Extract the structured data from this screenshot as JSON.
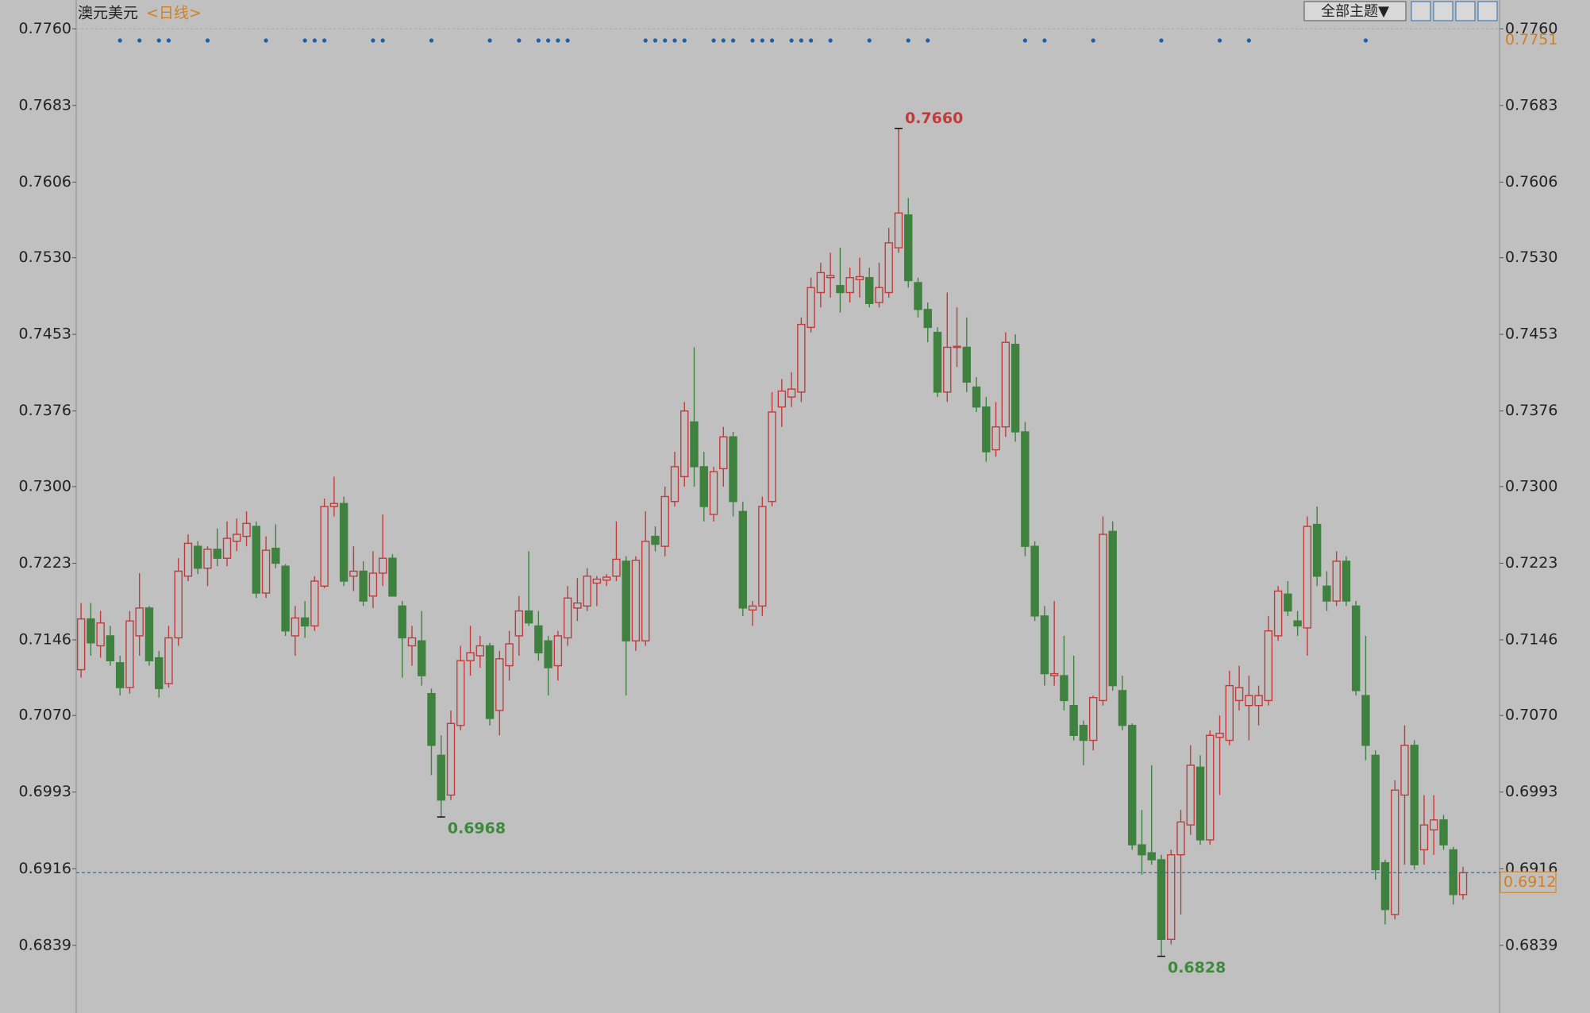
{
  "chart_data": {
    "type": "candlestick",
    "title": "澳元美元",
    "subtitle": "<日线>",
    "toolbar_button": "全部主题▼",
    "up_color": "#c23b3b",
    "down_color": "#3f813f",
    "ylim": [
      0.6771,
      0.7789
    ],
    "yticks": [
      {
        "value": 0.776,
        "label": "0.7760"
      },
      0.7683,
      0.7606,
      {
        "value": 0.753,
        "label": "0.7530"
      },
      0.7453,
      0.7376,
      {
        "value": 0.73,
        "label": "0.7300"
      },
      0.7223,
      0.7146,
      {
        "value": 0.707,
        "label": "0.7070"
      },
      0.6993,
      0.6916,
      0.6839
    ],
    "open": [
      0.7116,
      0.7167,
      0.714,
      0.715,
      0.7123,
      0.7098,
      0.715,
      0.7178,
      0.7128,
      0.7102,
      0.7148,
      0.721,
      0.724,
      0.7218,
      0.7237,
      0.7228,
      0.7245,
      0.725,
      0.726,
      0.7193,
      0.7238,
      0.722,
      0.715,
      0.7168,
      0.716,
      0.72,
      0.728,
      0.7283,
      0.721,
      0.7215,
      0.719,
      0.7213,
      0.7228,
      0.718,
      0.714,
      0.7145,
      0.7092,
      0.703,
      0.699,
      0.706,
      0.7125,
      0.713,
      0.714,
      0.7075,
      0.712,
      0.715,
      0.7175,
      0.716,
      0.7145,
      0.712,
      0.7148,
      0.7178,
      0.718,
      0.7203,
      0.7206,
      0.721,
      0.7225,
      0.7145,
      0.7145,
      0.725,
      0.724,
      0.7285,
      0.731,
      0.7365,
      0.732,
      0.7272,
      0.7318,
      0.735,
      0.7275,
      0.7176,
      0.718,
      0.7285,
      0.738,
      0.739,
      0.7395,
      0.746,
      0.7495,
      0.751,
      0.7502,
      0.7495,
      0.7508,
      0.751,
      0.7485,
      0.7495,
      0.754,
      0.7573,
      0.7505,
      0.7478,
      0.7455,
      0.7395,
      0.744,
      0.744,
      0.74,
      0.738,
      0.7337,
      0.736,
      0.7443,
      0.7355,
      0.724,
      0.717,
      0.711,
      0.711,
      0.708,
      0.706,
      0.7045,
      0.7085,
      0.7255,
      0.7095,
      0.706,
      0.694,
      0.6932,
      0.6925,
      0.6845,
      0.693,
      0.696,
      0.7018,
      0.6945,
      0.7048,
      0.7045,
      0.7085,
      0.708,
      0.708,
      0.7085,
      0.715,
      0.7192,
      0.7165,
      0.7158,
      0.7262,
      0.72,
      0.7185,
      0.7225,
      0.718,
      0.709,
      0.703,
      0.6922,
      0.687,
      0.699,
      0.704,
      0.6935,
      0.6955,
      0.6965,
      0.6935,
      0.689
    ],
    "high": [
      0.7183,
      0.7183,
      0.7175,
      0.716,
      0.713,
      0.7175,
      0.7213,
      0.718,
      0.7135,
      0.716,
      0.7228,
      0.7252,
      0.7245,
      0.724,
      0.7258,
      0.7265,
      0.7268,
      0.7275,
      0.7265,
      0.725,
      0.7262,
      0.7222,
      0.718,
      0.7185,
      0.721,
      0.7288,
      0.731,
      0.729,
      0.724,
      0.7225,
      0.7235,
      0.7272,
      0.7232,
      0.7185,
      0.716,
      0.7175,
      0.7097,
      0.705,
      0.7075,
      0.714,
      0.716,
      0.715,
      0.7143,
      0.7135,
      0.7155,
      0.719,
      0.7235,
      0.7175,
      0.715,
      0.7155,
      0.72,
      0.7208,
      0.7218,
      0.721,
      0.7212,
      0.7265,
      0.723,
      0.723,
      0.7275,
      0.726,
      0.73,
      0.7335,
      0.7385,
      0.744,
      0.7335,
      0.732,
      0.736,
      0.7355,
      0.7285,
      0.7185,
      0.729,
      0.7395,
      0.7408,
      0.7415,
      0.747,
      0.751,
      0.7525,
      0.7535,
      0.754,
      0.752,
      0.753,
      0.752,
      0.7525,
      0.756,
      0.766,
      0.759,
      0.751,
      0.7485,
      0.746,
      0.7495,
      0.748,
      0.747,
      0.741,
      0.739,
      0.7385,
      0.7455,
      0.7453,
      0.7365,
      0.7245,
      0.718,
      0.7185,
      0.715,
      0.713,
      0.7065,
      0.709,
      0.727,
      0.7265,
      0.711,
      0.7062,
      0.6975,
      0.702,
      0.693,
      0.6935,
      0.6975,
      0.704,
      0.703,
      0.7055,
      0.707,
      0.7115,
      0.712,
      0.711,
      0.71,
      0.717,
      0.72,
      0.7205,
      0.7175,
      0.727,
      0.728,
      0.7215,
      0.7235,
      0.723,
      0.7185,
      0.715,
      0.7035,
      0.6925,
      0.7005,
      0.706,
      0.7045,
      0.699,
      0.699,
      0.697,
      0.6938,
      0.6918
    ],
    "low": [
      0.7108,
      0.713,
      0.7128,
      0.712,
      0.709,
      0.7092,
      0.713,
      0.712,
      0.7088,
      0.7098,
      0.714,
      0.7205,
      0.7212,
      0.72,
      0.722,
      0.722,
      0.7235,
      0.724,
      0.7188,
      0.7188,
      0.7218,
      0.715,
      0.713,
      0.7148,
      0.7155,
      0.7198,
      0.727,
      0.72,
      0.7195,
      0.718,
      0.7178,
      0.72,
      0.719,
      0.7108,
      0.712,
      0.71,
      0.701,
      0.6968,
      0.6985,
      0.7055,
      0.711,
      0.7118,
      0.706,
      0.705,
      0.7105,
      0.713,
      0.716,
      0.7125,
      0.709,
      0.7105,
      0.714,
      0.7165,
      0.7175,
      0.718,
      0.72,
      0.7205,
      0.709,
      0.7135,
      0.714,
      0.7235,
      0.723,
      0.728,
      0.73,
      0.73,
      0.7265,
      0.7265,
      0.73,
      0.727,
      0.717,
      0.716,
      0.717,
      0.728,
      0.736,
      0.738,
      0.7385,
      0.7455,
      0.748,
      0.749,
      0.7475,
      0.7485,
      0.749,
      0.748,
      0.748,
      0.749,
      0.7535,
      0.75,
      0.747,
      0.7445,
      0.739,
      0.7385,
      0.742,
      0.7395,
      0.7375,
      0.7325,
      0.733,
      0.735,
      0.7345,
      0.723,
      0.7165,
      0.71,
      0.71,
      0.7075,
      0.7045,
      0.702,
      0.7035,
      0.708,
      0.7095,
      0.7055,
      0.6935,
      0.691,
      0.692,
      0.6828,
      0.684,
      0.687,
      0.695,
      0.694,
      0.694,
      0.699,
      0.704,
      0.7075,
      0.7045,
      0.706,
      0.708,
      0.7145,
      0.717,
      0.715,
      0.713,
      0.72,
      0.7175,
      0.718,
      0.718,
      0.709,
      0.7025,
      0.6905,
      0.686,
      0.6865,
      0.692,
      0.6915,
      0.692,
      0.693,
      0.6935,
      0.688,
      0.6885
    ],
    "close": [
      0.7167,
      0.7143,
      0.7163,
      0.7125,
      0.7098,
      0.7165,
      0.7178,
      0.7125,
      0.7097,
      0.7148,
      0.7215,
      0.7243,
      0.7218,
      0.7237,
      0.7228,
      0.7248,
      0.7252,
      0.7263,
      0.7193,
      0.7236,
      0.7223,
      0.7155,
      0.7168,
      0.716,
      0.7205,
      0.728,
      0.7283,
      0.7205,
      0.7215,
      0.7185,
      0.7213,
      0.7228,
      0.719,
      0.7148,
      0.7148,
      0.711,
      0.704,
      0.6985,
      0.7062,
      0.7125,
      0.7133,
      0.714,
      0.7067,
      0.7127,
      0.7142,
      0.7175,
      0.7163,
      0.7133,
      0.7118,
      0.715,
      0.7188,
      0.7183,
      0.721,
      0.7207,
      0.7209,
      0.7227,
      0.7145,
      0.7226,
      0.7245,
      0.7242,
      0.729,
      0.732,
      0.7376,
      0.732,
      0.728,
      0.7315,
      0.735,
      0.7285,
      0.7178,
      0.718,
      0.728,
      0.7375,
      0.7396,
      0.7398,
      0.7463,
      0.75,
      0.7515,
      0.7512,
      0.7495,
      0.751,
      0.7511,
      0.7484,
      0.75,
      0.7545,
      0.7575,
      0.7507,
      0.7478,
      0.746,
      0.7395,
      0.744,
      0.7441,
      0.7405,
      0.738,
      0.7335,
      0.736,
      0.7445,
      0.7355,
      0.724,
      0.717,
      0.7112,
      0.7112,
      0.7085,
      0.705,
      0.7045,
      0.7088,
      0.7252,
      0.71,
      0.706,
      0.694,
      0.693,
      0.6925,
      0.6845,
      0.693,
      0.6963,
      0.702,
      0.6945,
      0.705,
      0.7052,
      0.71,
      0.7098,
      0.709,
      0.709,
      0.7155,
      0.7195,
      0.7175,
      0.716,
      0.726,
      0.721,
      0.7185,
      0.7225,
      0.7185,
      0.7095,
      0.704,
      0.6915,
      0.6875,
      0.6995,
      0.704,
      0.692,
      0.696,
      0.6965,
      0.694,
      0.689,
      0.6912
    ],
    "event_markers": [
      4,
      6,
      8,
      9,
      13,
      19,
      23,
      24,
      25,
      30,
      31,
      36,
      42,
      45,
      47,
      48,
      49,
      50,
      58,
      59,
      60,
      61,
      62,
      65,
      66,
      67,
      69,
      70,
      71,
      73,
      74,
      75,
      77,
      81,
      85,
      87,
      97,
      99,
      104,
      111,
      117,
      120,
      132
    ],
    "high_annotation": {
      "value": 0.766,
      "label": "0.7660"
    },
    "low_annotations": [
      {
        "value": 0.6968,
        "label": "0.6968"
      },
      {
        "value": 0.6828,
        "label": "0.6828"
      }
    ],
    "last_price": {
      "value": 0.6912,
      "label": "0.6912"
    },
    "reference_level": {
      "value": 0.7751,
      "label": "0.7751"
    }
  }
}
